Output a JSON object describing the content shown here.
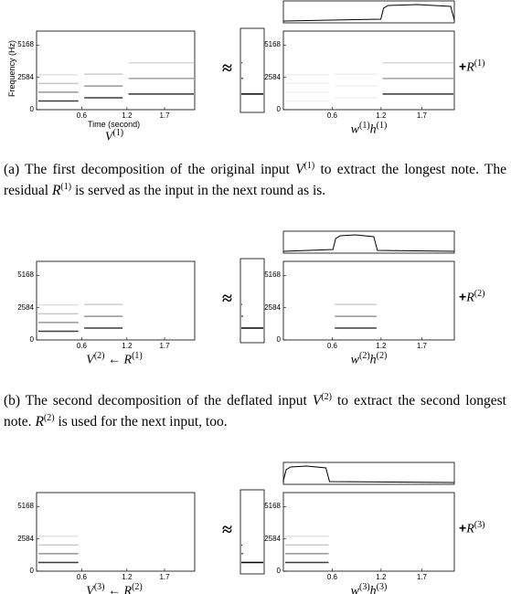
{
  "axes": {
    "yticks": [
      0,
      2584,
      5168
    ],
    "xticks": [
      0.6,
      1.2,
      1.7
    ],
    "ylabel": "Frequency (Hz)",
    "xlabel": "Time (second)"
  },
  "approx_symbol": "≈",
  "panels": [
    {
      "left_label": [
        {
          "m": "V"
        },
        {
          "sup": "(1)"
        }
      ],
      "right_label": [
        {
          "m": "w"
        },
        {
          "sup": "(1)"
        },
        {
          "m": "h"
        },
        {
          "sup": "(1)"
        }
      ],
      "residual": [
        {
          "b": "+"
        },
        {
          "m": "R"
        },
        {
          "sup": "(1)"
        }
      ],
      "caption": [
        {
          "t": "(a) The first decomposition of the original input "
        },
        {
          "m": "V"
        },
        {
          "sup": "(1)"
        },
        {
          "t": " to extract the longest note. The residual "
        },
        {
          "m": "R"
        },
        {
          "sup": "(1)"
        },
        {
          "t": " is served as the input in the next round as is."
        }
      ]
    },
    {
      "left_label": [
        {
          "m": "V"
        },
        {
          "sup": "(2)"
        },
        {
          "t": " ← "
        },
        {
          "m": "R"
        },
        {
          "sup": "(1)"
        }
      ],
      "right_label": [
        {
          "m": "w"
        },
        {
          "sup": "(2)"
        },
        {
          "m": "h"
        },
        {
          "sup": "(2)"
        }
      ],
      "residual": [
        {
          "b": "+"
        },
        {
          "m": "R"
        },
        {
          "sup": "(2)"
        }
      ],
      "caption": [
        {
          "t": "(b) The second decomposition of the deflated input "
        },
        {
          "m": "V"
        },
        {
          "sup": "(2)"
        },
        {
          "t": " to extract the second longest note. "
        },
        {
          "m": "R"
        },
        {
          "sup": "(2)"
        },
        {
          "t": " is used for the next input, too."
        }
      ]
    },
    {
      "left_label": [
        {
          "m": "V"
        },
        {
          "sup": "(3)"
        },
        {
          "t": " ← "
        },
        {
          "m": "R"
        },
        {
          "sup": "(2)"
        }
      ],
      "right_label": [
        {
          "m": "w"
        },
        {
          "sup": "(3)"
        },
        {
          "m": "h"
        },
        {
          "sup": "(3)"
        }
      ],
      "residual": [
        {
          "b": "+"
        },
        {
          "m": "R"
        },
        {
          "sup": "(3)"
        }
      ]
    }
  ]
}
